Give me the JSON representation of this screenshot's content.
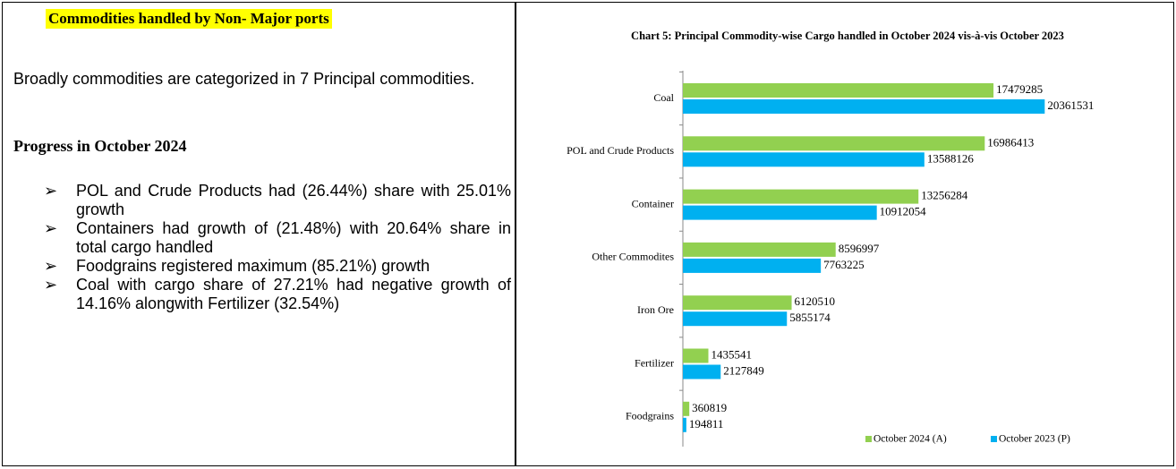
{
  "document": {
    "heading": "Commodities handled by Non- Major ports",
    "intro": "Broadly commodities are categorized in 7 Principal commodities.",
    "subheading": "Progress in October 2024",
    "bullets": [
      "POL and Crude Products had (26.44%) share with 25.01% growth",
      "Containers had growth of (21.48%) with 20.64% share in total cargo handled",
      "Foodgrains registered maximum (85.21%) growth",
      "Coal with cargo share of 27.21% had negative growth of 14.16% alongwith Fertilizer (32.54%)"
    ]
  },
  "chart_data": {
    "type": "hbar",
    "title": "Chart 5: Principal Commodity-wise Cargo handled in October 2024 vis-à-vis October 2023",
    "categories": [
      "Coal",
      "POL and Crude Products",
      "Container",
      "Other Commodites",
      "Iron Ore",
      "Fertilizer",
      "Foodgrains"
    ],
    "series": [
      {
        "name": "October 2024 (A)",
        "color": "#92d050",
        "values": [
          17479285,
          16986413,
          13256284,
          8596997,
          6120510,
          1435541,
          360819
        ]
      },
      {
        "name": "October 2023 (P)",
        "color": "#00b0f0",
        "values": [
          20361531,
          13588126,
          10912054,
          7763225,
          5855174,
          2127849,
          194811
        ]
      }
    ],
    "xlim": [
      0,
      21000000
    ],
    "legend": "bottom-right"
  }
}
